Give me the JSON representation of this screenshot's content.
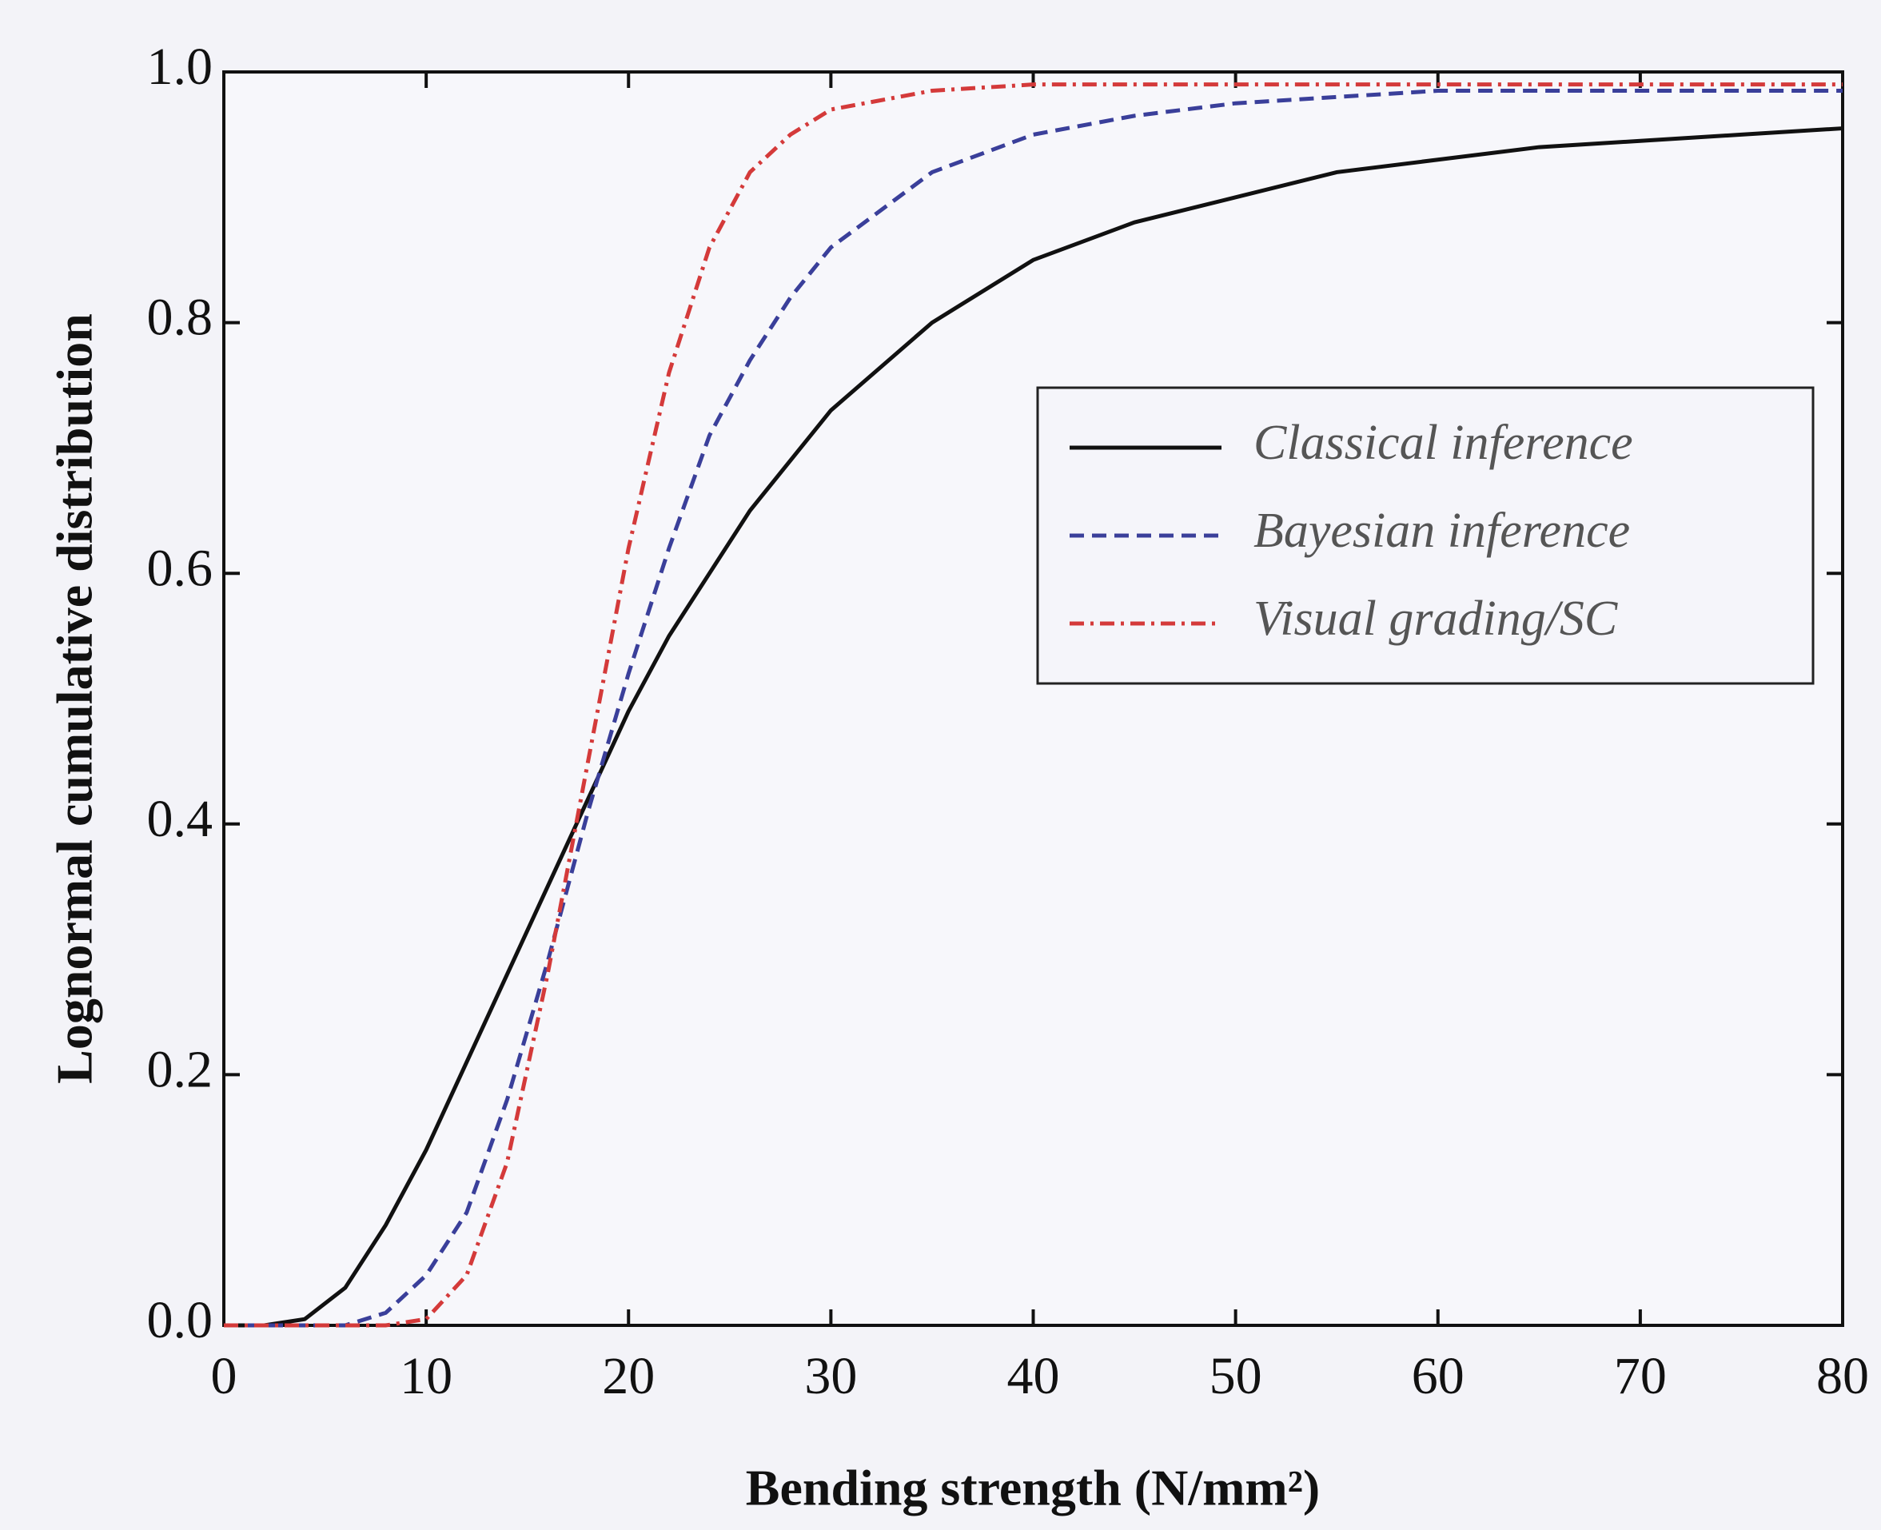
{
  "chart_data": {
    "type": "line",
    "x_label": "Bending strength (N/mm²)",
    "y_label": "Lognormal cumulative distribution",
    "x": [
      0,
      2,
      4,
      6,
      8,
      10,
      12,
      14,
      16,
      18,
      20,
      22,
      24,
      26,
      28,
      30,
      35,
      40,
      45,
      50,
      55,
      60,
      65,
      70,
      75,
      80
    ],
    "series": [
      {
        "name": "Classical inference",
        "color": "#111111",
        "dash": "solid",
        "values": [
          0,
          0,
          0.005,
          0.03,
          0.08,
          0.14,
          0.21,
          0.28,
          0.35,
          0.42,
          0.49,
          0.55,
          0.6,
          0.65,
          0.69,
          0.73,
          0.8,
          0.85,
          0.88,
          0.9,
          0.92,
          0.93,
          0.94,
          0.945,
          0.95,
          0.955
        ]
      },
      {
        "name": "Bayesian inference",
        "color": "#3a3f9a",
        "dash": "dashed",
        "values": [
          0,
          0,
          0,
          0,
          0.01,
          0.04,
          0.09,
          0.18,
          0.29,
          0.41,
          0.52,
          0.62,
          0.71,
          0.77,
          0.82,
          0.86,
          0.92,
          0.95,
          0.965,
          0.975,
          0.98,
          0.985,
          0.985,
          0.985,
          0.985,
          0.985
        ]
      },
      {
        "name": "Visual grading/SC",
        "color": "#d43a3a",
        "dash": "dashdot",
        "values": [
          0,
          0,
          0,
          0,
          0,
          0.005,
          0.04,
          0.13,
          0.28,
          0.45,
          0.62,
          0.76,
          0.86,
          0.92,
          0.95,
          0.97,
          0.985,
          0.99,
          0.99,
          0.99,
          0.99,
          0.99,
          0.99,
          0.99,
          0.99,
          0.99
        ]
      }
    ],
    "xlim": [
      0,
      80
    ],
    "xticks": [
      0,
      10,
      20,
      30,
      40,
      50,
      60,
      70,
      80
    ],
    "ylim": [
      0,
      1
    ],
    "yticks": [
      {
        "value": 0,
        "label": "0.0"
      },
      0.2,
      0.4,
      0.6,
      0.8,
      {
        "value": 1,
        "label": "1.0"
      }
    ],
    "legend": "right",
    "grid": false
  }
}
